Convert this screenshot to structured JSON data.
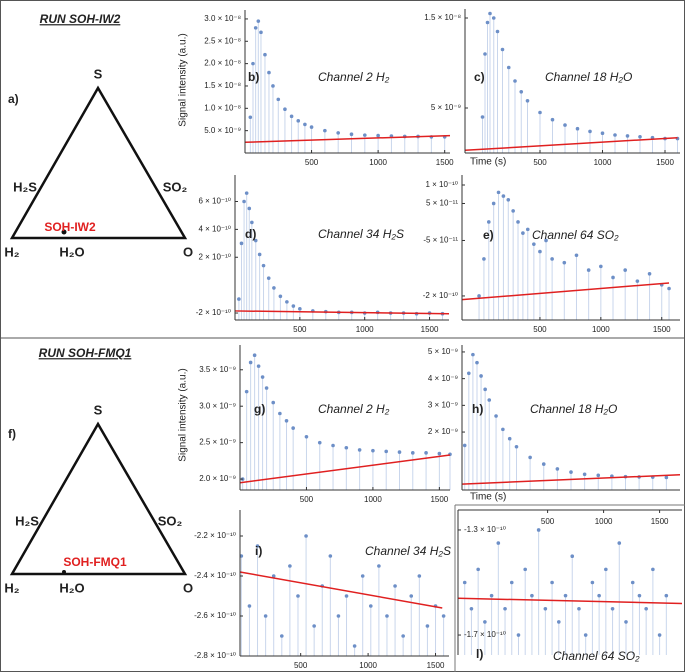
{
  "ternary": [
    {
      "title": "RUN SOH-IW2",
      "letter": "a)",
      "top": "S",
      "left_side": "H₂S",
      "right_side": "SO₂",
      "bottom_left": "H₂",
      "bottom_mid": "H₂O",
      "bottom_right": "O",
      "sample": "SOH-IW2"
    },
    {
      "title": "RUN SOH-FMQ1",
      "letter": "f)",
      "top": "S",
      "left_side": "H₂S",
      "right_side": "SO₂",
      "bottom_left": "H₂",
      "bottom_mid": "H₂O",
      "bottom_right": "O",
      "sample": "SOH-FMQ1"
    }
  ],
  "chart_data": [
    {
      "type": "scatter",
      "letter": "b)",
      "title": "Channel 2 H₂",
      "ylabel": "Signal intensity (a.u.)",
      "color": "#6d8fc7",
      "stem_color": "#c9d6ec",
      "x": [
        40,
        60,
        80,
        100,
        120,
        150,
        180,
        210,
        250,
        300,
        350,
        400,
        450,
        500,
        600,
        700,
        800,
        900,
        1000,
        1100,
        1200,
        1300,
        1400,
        1500
      ],
      "values": [
        8e-09,
        2e-08,
        2.8e-08,
        2.95e-08,
        2.7e-08,
        2.2e-08,
        1.8e-08,
        1.5e-08,
        1.2e-08,
        9.8e-09,
        8.2e-09,
        7.2e-09,
        6.4e-09,
        5.8e-09,
        5e-09,
        4.5e-09,
        4.2e-09,
        4e-09,
        3.9e-09,
        3.8e-09,
        3.7e-09,
        3.7e-09,
        3.6e-09,
        3.6e-09
      ],
      "fit": {
        "x": [
          0,
          1540
        ],
        "values": [
          2.4e-09,
          3.9e-09
        ],
        "color": "#e02020"
      },
      "xlim": [
        0,
        1540
      ],
      "ylim": [
        0,
        3.2e-08
      ],
      "xticks": [
        500,
        1000,
        1500
      ],
      "yticks": [
        {
          "value": 3e-08,
          "label": "3.0 × 10⁻⁸"
        },
        {
          "value": 2.5e-08,
          "label": "2.5 × 10⁻⁸"
        },
        {
          "value": 2e-08,
          "label": "2.0 × 10⁻⁸"
        },
        {
          "value": 1.5e-08,
          "label": "1.5 × 10⁻⁸"
        },
        {
          "value": 1e-08,
          "label": "1.0 × 10⁻⁸"
        },
        {
          "value": 5e-09,
          "label": "5.0 × 10⁻⁹"
        }
      ]
    },
    {
      "type": "scatter",
      "letter": "c)",
      "title": "Channel 18 H₂O",
      "xlabel": "Time (s)",
      "color": "#6d8fc7",
      "stem_color": "#c9d6ec",
      "x": [
        40,
        60,
        80,
        100,
        130,
        160,
        200,
        250,
        300,
        350,
        400,
        500,
        600,
        700,
        800,
        900,
        1000,
        1100,
        1200,
        1300,
        1400,
        1500,
        1600
      ],
      "values": [
        4e-09,
        1.1e-08,
        1.45e-08,
        1.55e-08,
        1.5e-08,
        1.35e-08,
        1.15e-08,
        9.5e-09,
        8e-09,
        6.8e-09,
        5.8e-09,
        4.5e-09,
        3.7e-09,
        3.1e-09,
        2.7e-09,
        2.4e-09,
        2.2e-09,
        2e-09,
        1.9e-09,
        1.8e-09,
        1.7e-09,
        1.6e-09,
        1.6e-09
      ],
      "fit": {
        "x": [
          -100,
          1600
        ],
        "values": [
          3e-10,
          1.7e-09
        ],
        "color": "#e02020"
      },
      "xlim": [
        -100,
        1620
      ],
      "ylim": [
        0,
        1.6e-08
      ],
      "xticks": [
        500,
        1000,
        1500
      ],
      "yticks": [
        {
          "value": 1.5e-08,
          "label": "1.5 × 10⁻⁸"
        },
        {
          "value": 5e-09,
          "label": "5 × 10⁻⁹"
        }
      ]
    },
    {
      "type": "scatter",
      "letter": "d)",
      "title": "Channel 34 H₂S",
      "color": "#6d8fc7",
      "stem_color": "#c9d6ec",
      "x": [
        30,
        50,
        70,
        90,
        110,
        130,
        160,
        190,
        220,
        260,
        300,
        350,
        400,
        450,
        500,
        600,
        700,
        800,
        900,
        1000,
        1100,
        1200,
        1300,
        1400,
        1500,
        1600
      ],
      "values": [
        -1e-10,
        3e-10,
        6e-10,
        6.6e-10,
        5.5e-10,
        4.5e-10,
        3.2e-10,
        2.2e-10,
        1.4e-10,
        5e-11,
        -2e-11,
        -8e-11,
        -1.2e-10,
        -1.5e-10,
        -1.7e-10,
        -1.85e-10,
        -1.9e-10,
        -1.95e-10,
        -1.95e-10,
        -2e-10,
        -1.95e-10,
        -2e-10,
        -2e-10,
        -2.05e-10,
        -2e-10,
        -2.05e-10
      ],
      "fit": {
        "x": [
          0,
          1650
        ],
        "values": [
          -1.85e-10,
          -2.05e-10
        ],
        "color": "#e02020"
      },
      "xlim": [
        0,
        1650
      ],
      "ylim": [
        -2.5e-10,
        7.9e-10
      ],
      "xticks": [
        500,
        1000,
        1500
      ],
      "yticks": [
        {
          "value": 6e-10,
          "label": "6 × 10⁻¹⁰"
        },
        {
          "value": 4e-10,
          "label": "4 × 10⁻¹⁰"
        },
        {
          "value": 2e-10,
          "label": "2 × 10⁻¹⁰"
        },
        {
          "value": -2e-10,
          "label": "-2 × 10⁻¹⁰"
        }
      ]
    },
    {
      "type": "scatter",
      "letter": "e)",
      "title": "Channel 64 SO₂",
      "color": "#6d8fc7",
      "stem_color": "#c9d6ec",
      "x": [
        0,
        40,
        80,
        120,
        160,
        200,
        240,
        280,
        320,
        360,
        400,
        450,
        500,
        550,
        600,
        700,
        800,
        900,
        1000,
        1100,
        1200,
        1300,
        1400,
        1500,
        1560
      ],
      "values": [
        -2e-10,
        -1e-10,
        0,
        5e-11,
        8e-11,
        7e-11,
        6e-11,
        3e-11,
        0,
        -3e-11,
        -2e-11,
        -6e-11,
        -8e-11,
        -5e-11,
        -1e-10,
        -1.1e-10,
        -9e-11,
        -1.3e-10,
        -1.2e-10,
        -1.5e-10,
        -1.3e-10,
        -1.6e-10,
        -1.4e-10,
        -1.7e-10,
        -1.8e-10
      ],
      "fit": {
        "x": [
          -140,
          1560
        ],
        "values": [
          -2.1e-10,
          -1.65e-10
        ],
        "color": "#e02020"
      },
      "xlim": [
        -140,
        1650
      ],
      "ylim": [
        -2.65e-10,
        1.27e-10
      ],
      "xticks": [
        500,
        1000,
        1500
      ],
      "yticks": [
        {
          "value": 1e-10,
          "label": "1 × 10⁻¹⁰"
        },
        {
          "value": 5e-11,
          "label": "5 × 10⁻¹¹"
        },
        {
          "value": -5e-11,
          "label": "-5 × 10⁻¹¹"
        },
        {
          "value": -2e-10,
          "label": "-2 × 10⁻¹⁰"
        }
      ]
    },
    {
      "type": "scatter",
      "letter": "g)",
      "title": "Channel 2 H₂",
      "ylabel": "Signal intensity (a.u.)",
      "color": "#6d8fc7",
      "stem_color": "#c9d6ec",
      "x": [
        20,
        50,
        80,
        110,
        140,
        170,
        200,
        250,
        300,
        350,
        400,
        500,
        600,
        700,
        800,
        900,
        1000,
        1100,
        1200,
        1300,
        1400,
        1500,
        1580
      ],
      "values": [
        2e-09,
        3.2e-09,
        3.6e-09,
        3.7e-09,
        3.55e-09,
        3.4e-09,
        3.25e-09,
        3.05e-09,
        2.9e-09,
        2.8e-09,
        2.7e-09,
        2.58e-09,
        2.5e-09,
        2.46e-09,
        2.43e-09,
        2.4e-09,
        2.39e-09,
        2.38e-09,
        2.37e-09,
        2.36e-09,
        2.36e-09,
        2.35e-09,
        2.34e-09
      ],
      "fit": {
        "x": [
          0,
          1580
        ],
        "values": [
          1.95e-09,
          2.33e-09
        ],
        "color": "#e02020"
      },
      "xlim": [
        0,
        1580
      ],
      "ylim": [
        1.85e-09,
        3.84e-09
      ],
      "xticks": [
        500,
        1000,
        1500
      ],
      "yticks": [
        {
          "value": 3.5e-09,
          "label": "3.5 × 10⁻⁹"
        },
        {
          "value": 3e-09,
          "label": "3.0 × 10⁻⁹"
        },
        {
          "value": 2.5e-09,
          "label": "2.5 × 10⁻⁹"
        },
        {
          "value": 2e-09,
          "label": "2.0 × 10⁻⁹"
        }
      ]
    },
    {
      "type": "scatter",
      "letter": "h)",
      "title": "Channel 18 H₂O",
      "xlabel": "Time (s)",
      "color": "#6d8fc7",
      "stem_color": "#c9d6ec",
      "x": [
        20,
        50,
        80,
        110,
        140,
        170,
        200,
        250,
        300,
        350,
        400,
        500,
        600,
        700,
        800,
        900,
        1000,
        1100,
        1200,
        1300,
        1400,
        1500
      ],
      "values": [
        1.5e-09,
        4.2e-09,
        4.9e-09,
        4.6e-09,
        4.1e-09,
        3.6e-09,
        3.2e-09,
        2.6e-09,
        2.1e-09,
        1.75e-09,
        1.45e-09,
        1.05e-09,
        8e-10,
        6.2e-10,
        5e-10,
        4.2e-10,
        3.8e-10,
        3.5e-10,
        3.3e-10,
        3.2e-10,
        3.1e-10,
        3e-10
      ],
      "fit": {
        "x": [
          0,
          1600
        ],
        "values": [
          5e-11,
          4e-10
        ],
        "color": "#e02020"
      },
      "xlim": [
        0,
        1600
      ],
      "ylim": [
        -1.7e-10,
        5.26e-09
      ],
      "yticks": [
        {
          "value": 5e-09,
          "label": "5 × 10⁻⁹"
        },
        {
          "value": 4e-09,
          "label": "4 × 10⁻⁹"
        },
        {
          "value": 3e-09,
          "label": "3 × 10⁻⁹"
        },
        {
          "value": 2e-09,
          "label": "2 × 10⁻⁹"
        }
      ]
    },
    {
      "type": "scatter",
      "letter": "i)",
      "title": "Channel 34 H₂S",
      "color": "#6d8fc7",
      "stem_color": "#c9d6ec",
      "x": [
        60,
        120,
        180,
        240,
        300,
        360,
        420,
        480,
        540,
        600,
        660,
        720,
        780,
        840,
        900,
        960,
        1020,
        1080,
        1140,
        1200,
        1260,
        1320,
        1380,
        1440,
        1500,
        1560
      ],
      "values": [
        -2.3e-10,
        -2.55e-10,
        -2.25e-10,
        -2.6e-10,
        -2.4e-10,
        -2.7e-10,
        -2.35e-10,
        -2.5e-10,
        -2.2e-10,
        -2.65e-10,
        -2.45e-10,
        -2.3e-10,
        -2.6e-10,
        -2.5e-10,
        -2.75e-10,
        -2.4e-10,
        -2.55e-10,
        -2.35e-10,
        -2.6e-10,
        -2.45e-10,
        -2.7e-10,
        -2.5e-10,
        -2.4e-10,
        -2.65e-10,
        -2.55e-10,
        -2.6e-10
      ],
      "fit": {
        "x": [
          50,
          1550
        ],
        "values": [
          -2.38e-10,
          -2.56e-10
        ],
        "color": "#e02020"
      },
      "xlim": [
        50,
        1600
      ],
      "ylim": [
        -2.8e-10,
        -2.07e-10
      ],
      "xticks": [
        500,
        1000,
        1500
      ],
      "yticks": [
        {
          "value": -2.2e-10,
          "label": "-2.2 × 10⁻¹⁰"
        },
        {
          "value": -2.4e-10,
          "label": "-2.4 × 10⁻¹⁰"
        },
        {
          "value": -2.6e-10,
          "label": "-2.6 × 10⁻¹⁰"
        },
        {
          "value": -2.8e-10,
          "label": "-2.8 × 10⁻¹⁰"
        }
      ]
    },
    {
      "type": "scatter",
      "letter": "l)",
      "title": "Channel 64 SO₂",
      "color": "#6d8fc7",
      "stem_color": "#c9d6ec",
      "xaxis": "top",
      "yticks_inside": true,
      "x": [
        -240,
        -180,
        -120,
        -60,
        0,
        60,
        120,
        180,
        240,
        300,
        360,
        420,
        480,
        540,
        600,
        660,
        720,
        780,
        840,
        900,
        960,
        1020,
        1080,
        1140,
        1200,
        1260,
        1320,
        1380,
        1440,
        1500,
        1560
      ],
      "values": [
        -1.5e-10,
        -1.6e-10,
        -1.45e-10,
        -1.65e-10,
        -1.55e-10,
        -1.35e-10,
        -1.6e-10,
        -1.5e-10,
        -1.7e-10,
        -1.45e-10,
        -1.55e-10,
        -1.3e-10,
        -1.6e-10,
        -1.5e-10,
        -1.65e-10,
        -1.55e-10,
        -1.4e-10,
        -1.6e-10,
        -1.7e-10,
        -1.5e-10,
        -1.55e-10,
        -1.45e-10,
        -1.6e-10,
        -1.35e-10,
        -1.65e-10,
        -1.5e-10,
        -1.55e-10,
        -1.6e-10,
        -1.45e-10,
        -1.7e-10,
        -1.55e-10
      ],
      "fit": {
        "x": [
          -300,
          1700
        ],
        "values": [
          -1.56e-10,
          -1.58e-10
        ],
        "color": "#e02020"
      },
      "xlim": [
        -300,
        1700
      ],
      "ylim": [
        -1.776e-10,
        -1.224e-10
      ],
      "xticks": [
        500,
        1000,
        1500
      ],
      "yticks": [
        {
          "value": -1.3e-10,
          "label": "-1.3 × 10⁻¹⁰"
        },
        {
          "value": -1.7e-10,
          "label": "-1.7 × 10⁻¹⁰"
        }
      ]
    }
  ]
}
